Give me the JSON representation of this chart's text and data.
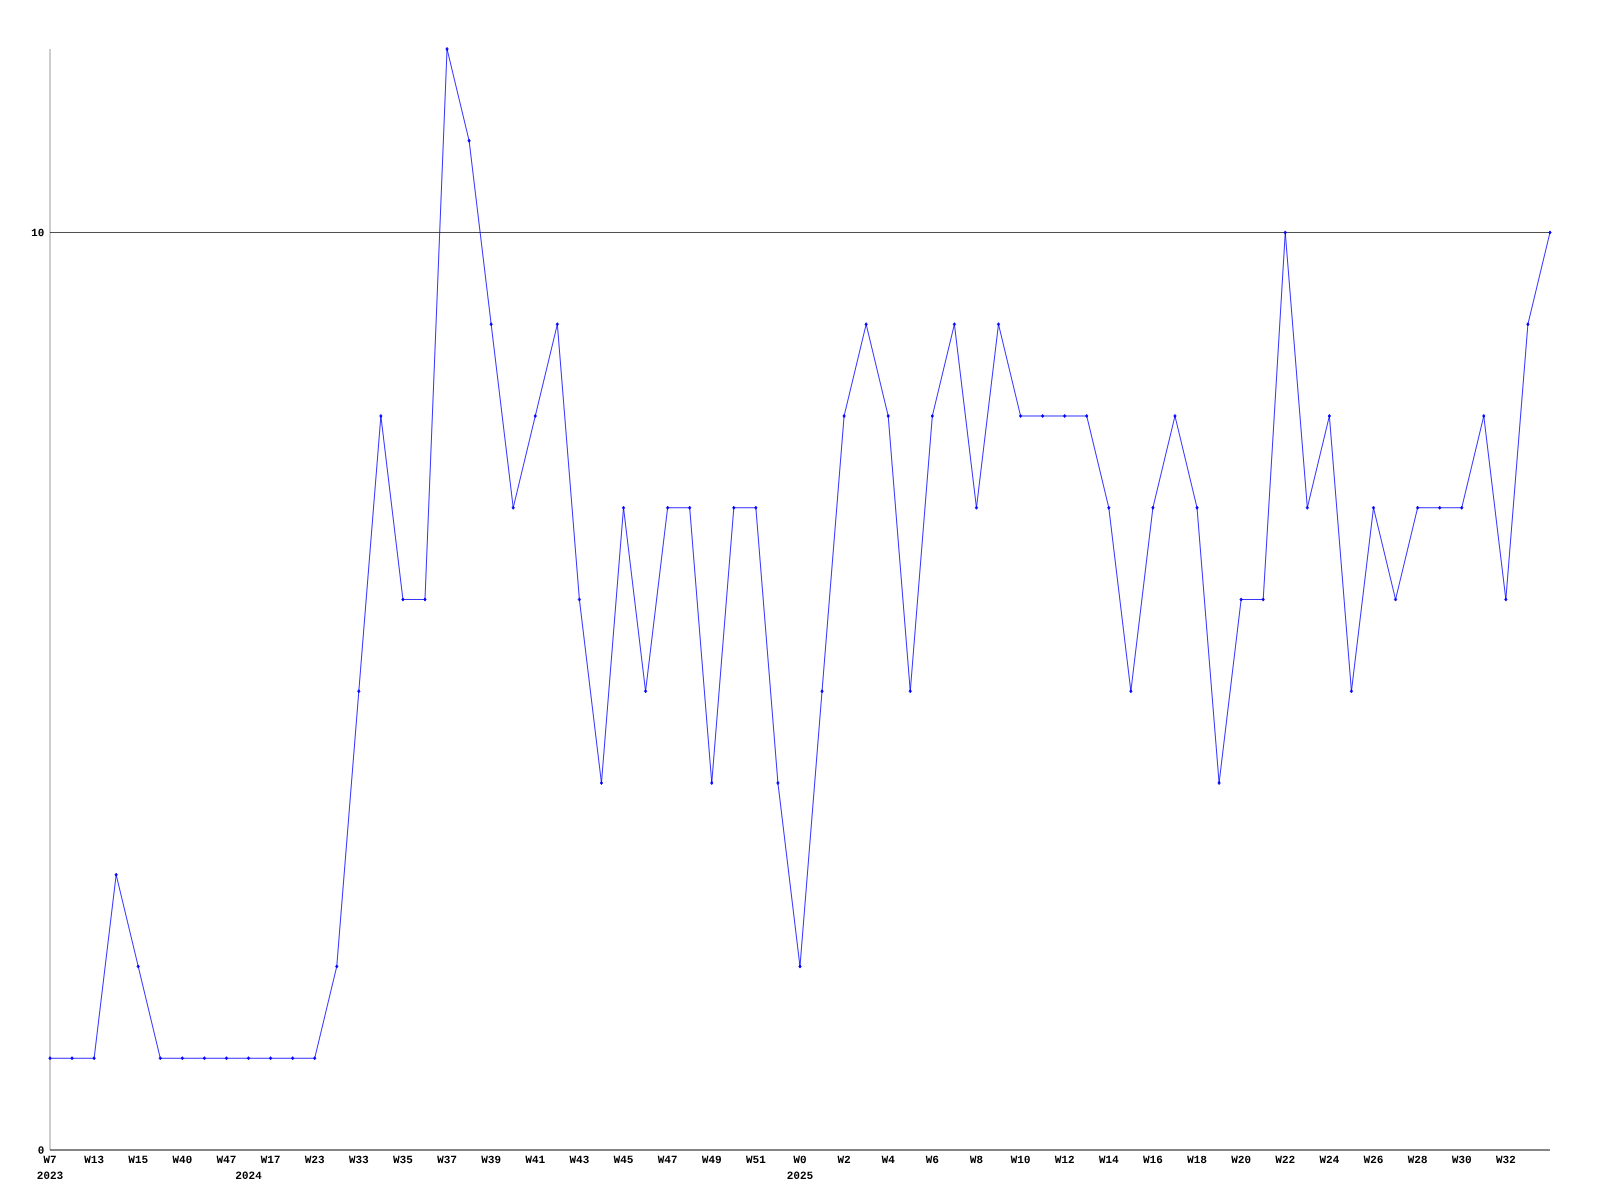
{
  "chart_data": {
    "type": "line",
    "color": "#0000ff",
    "marker": "diamond",
    "grid": "y",
    "categories": [
      "W7",
      null,
      "W13",
      null,
      "W15",
      null,
      "W40",
      null,
      "W47",
      null,
      "W17",
      null,
      "W23",
      null,
      "W33",
      null,
      "W35",
      null,
      "W37",
      null,
      "W39",
      null,
      "W41",
      null,
      "W43",
      null,
      "W45",
      null,
      "W47",
      null,
      "W49",
      null,
      "W51",
      null,
      "W0",
      null,
      "W2",
      null,
      "W4",
      null,
      "W6",
      null,
      "W8",
      null,
      "W10",
      null,
      "W12",
      null,
      "W14",
      null,
      "W16",
      null,
      "W18",
      null,
      "W20",
      null,
      "W22",
      null,
      "W24",
      null,
      "W26",
      null,
      "W28",
      null,
      "W30",
      null,
      "W32",
      null,
      null
    ],
    "values": [
      1,
      1,
      1,
      3,
      2,
      1,
      1,
      1,
      1,
      1,
      1,
      1,
      1,
      2,
      5,
      8,
      6,
      6,
      12,
      11,
      9,
      7,
      8,
      9,
      6,
      4,
      7,
      5,
      7,
      7,
      4,
      7,
      7,
      4,
      2,
      5,
      8,
      9,
      8,
      5,
      8,
      9,
      7,
      9,
      8,
      8,
      8,
      8,
      7,
      5,
      7,
      8,
      7,
      4,
      6,
      6,
      10,
      7,
      8,
      5,
      7,
      6,
      7,
      7,
      7,
      8,
      6,
      9,
      10
    ],
    "ylim": [
      0,
      12
    ],
    "yticks": [
      0,
      10
    ],
    "annotations": [
      "2023",
      "2024",
      "2025"
    ]
  }
}
